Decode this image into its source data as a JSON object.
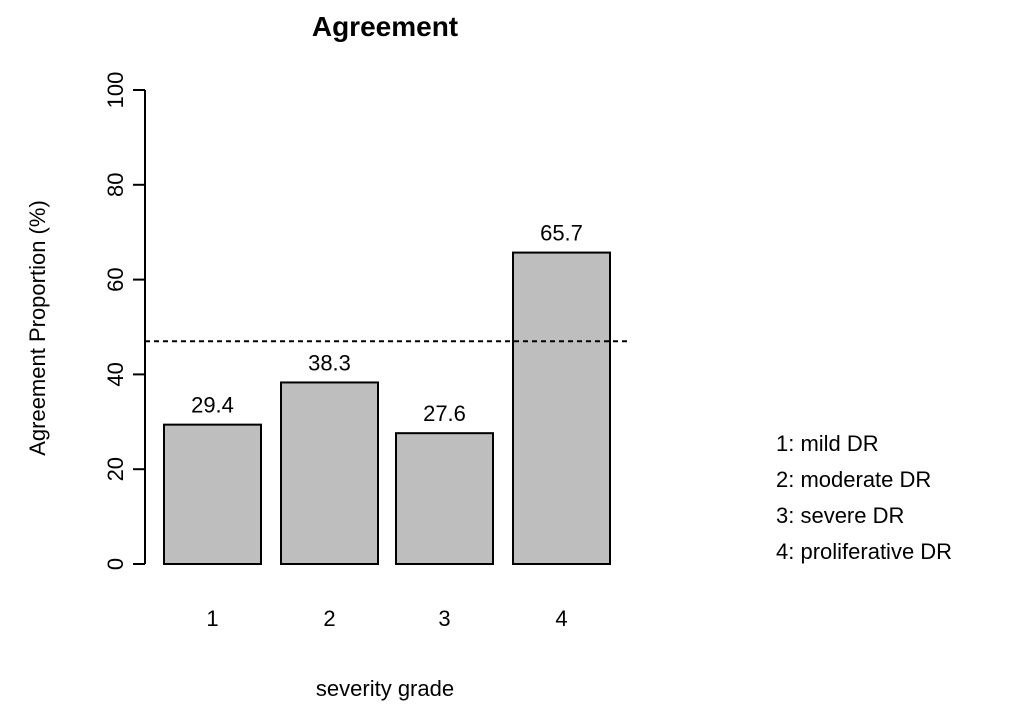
{
  "chart_data": {
    "type": "bar",
    "title": "Agreement",
    "xlabel": "severity grade",
    "ylabel": "Agreement Proportion (%)",
    "categories": [
      "1",
      "2",
      "3",
      "4"
    ],
    "values": [
      29.4,
      38.3,
      27.6,
      65.7
    ],
    "data_labels": [
      "29.4",
      "38.3",
      "27.6",
      "65.7"
    ],
    "ylim": [
      0,
      100
    ],
    "yticks": [
      0,
      20,
      40,
      60,
      80,
      100
    ],
    "reference_line": 47,
    "grid": false,
    "bar_color": "#bebebe",
    "bar_edge_color": "#000000",
    "notes": [
      "1: mild DR",
      "2: moderate DR",
      "3: severe DR",
      "4: proliferative DR"
    ]
  }
}
